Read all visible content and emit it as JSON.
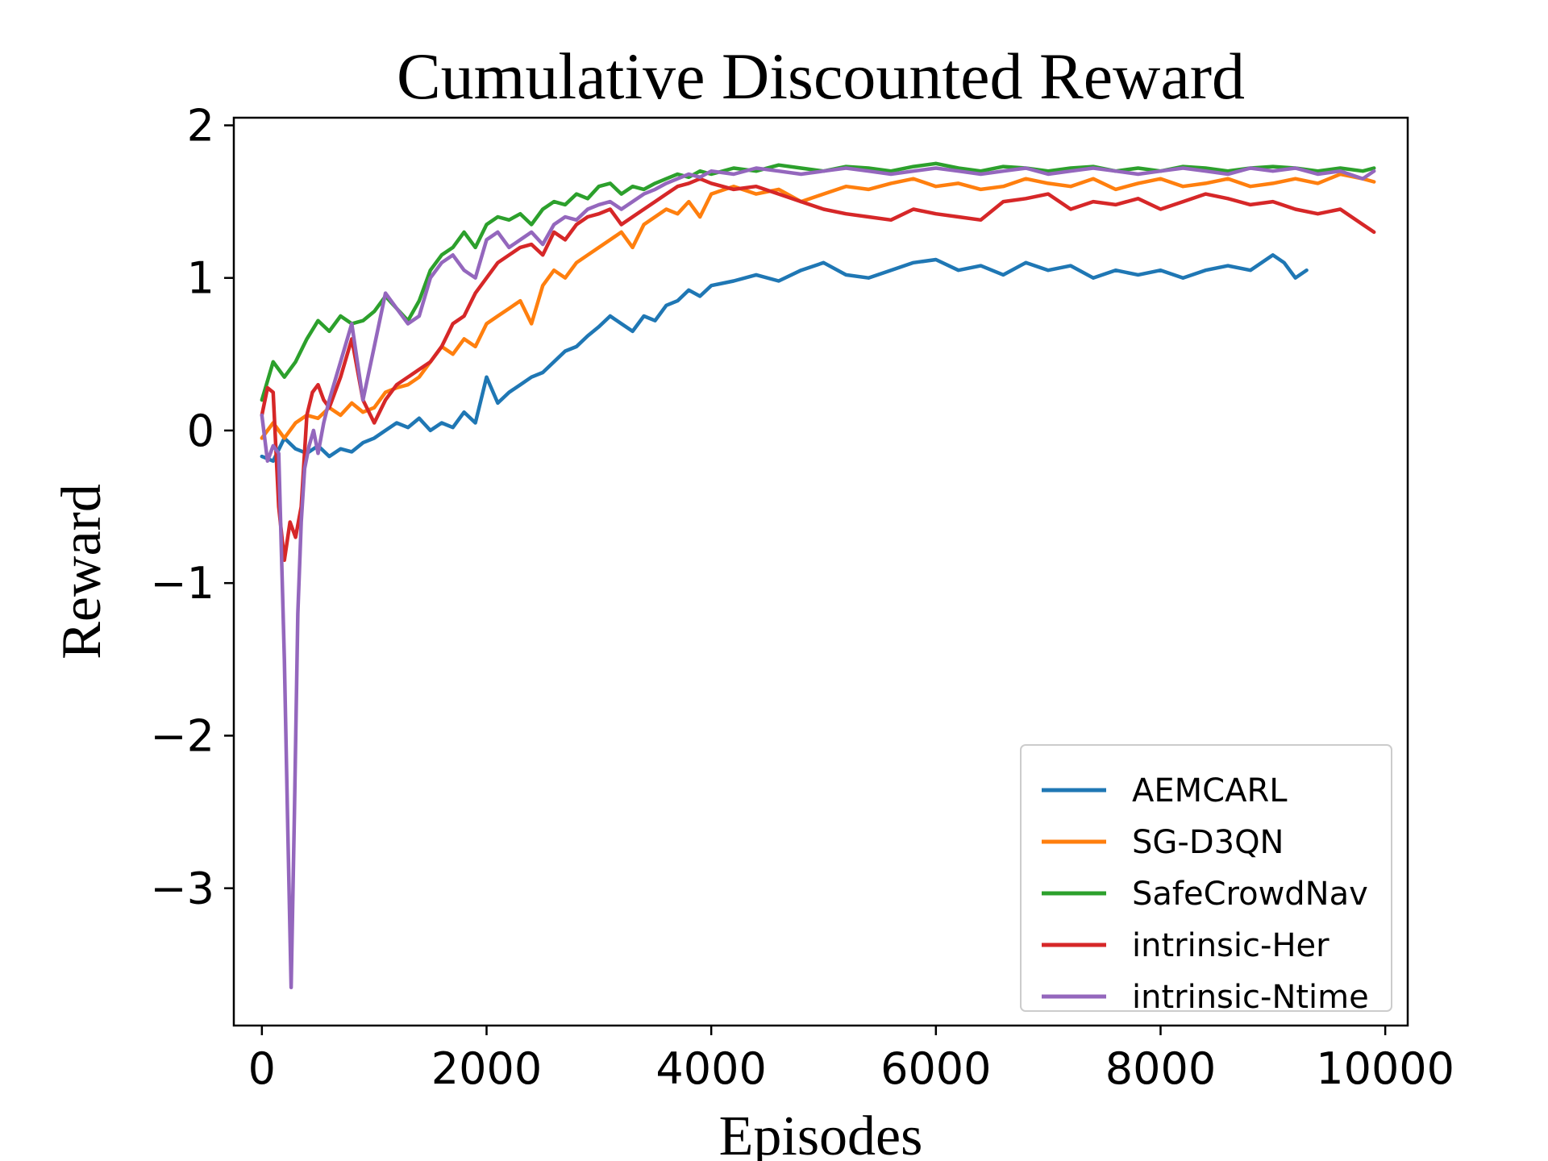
{
  "chart_data": {
    "type": "line",
    "title": "Cumulative Discounted Reward",
    "xlabel": "Episodes",
    "ylabel": "Reward",
    "xlim": [
      -250,
      10200
    ],
    "ylim": [
      -3.9,
      2.05
    ],
    "xticks": [
      0,
      2000,
      4000,
      6000,
      8000,
      10000
    ],
    "xtick_labels": [
      "0",
      "2000",
      "4000",
      "6000",
      "8000",
      "10000"
    ],
    "yticks": [
      -3,
      -2,
      -1,
      0,
      1,
      2
    ],
    "ytick_labels": [
      "−3",
      "−2",
      "−1",
      "0",
      "1",
      "2"
    ],
    "grid": false,
    "legend_position": "lower-right",
    "series": [
      {
        "name": "AEMCARL",
        "color": "#1f77b4",
        "x": [
          0,
          100,
          200,
          300,
          400,
          500,
          600,
          700,
          800,
          900,
          1000,
          1100,
          1200,
          1300,
          1400,
          1500,
          1600,
          1700,
          1800,
          1900,
          2000,
          2100,
          2200,
          2300,
          2400,
          2500,
          2600,
          2700,
          2800,
          2900,
          3000,
          3100,
          3200,
          3300,
          3400,
          3500,
          3600,
          3700,
          3800,
          3900,
          4000,
          4200,
          4400,
          4600,
          4800,
          5000,
          5200,
          5400,
          5600,
          5800,
          6000,
          6200,
          6400,
          6600,
          6800,
          7000,
          7200,
          7400,
          7600,
          7800,
          8000,
          8200,
          8400,
          8600,
          8800,
          9000,
          9100,
          9200,
          9300
        ],
        "values": [
          -0.17,
          -0.2,
          -0.05,
          -0.12,
          -0.15,
          -0.1,
          -0.17,
          -0.12,
          -0.14,
          -0.08,
          -0.05,
          0.0,
          0.05,
          0.02,
          0.08,
          0.0,
          0.05,
          0.02,
          0.12,
          0.05,
          0.35,
          0.18,
          0.25,
          0.3,
          0.35,
          0.38,
          0.45,
          0.52,
          0.55,
          0.62,
          0.68,
          0.75,
          0.7,
          0.65,
          0.75,
          0.72,
          0.82,
          0.85,
          0.92,
          0.88,
          0.95,
          0.98,
          1.02,
          0.98,
          1.05,
          1.1,
          1.02,
          1.0,
          1.05,
          1.1,
          1.12,
          1.05,
          1.08,
          1.02,
          1.1,
          1.05,
          1.08,
          1.0,
          1.05,
          1.02,
          1.05,
          1.0,
          1.05,
          1.08,
          1.05,
          1.15,
          1.1,
          1.0,
          1.05
        ]
      },
      {
        "name": "SG-D3QN",
        "color": "#ff7f0e",
        "x": [
          0,
          100,
          200,
          300,
          400,
          500,
          600,
          700,
          800,
          900,
          1000,
          1100,
          1200,
          1300,
          1400,
          1500,
          1600,
          1700,
          1800,
          1900,
          2000,
          2100,
          2200,
          2300,
          2400,
          2500,
          2600,
          2700,
          2800,
          2900,
          3000,
          3100,
          3200,
          3300,
          3400,
          3500,
          3600,
          3700,
          3800,
          3900,
          4000,
          4200,
          4400,
          4600,
          4800,
          5000,
          5200,
          5400,
          5600,
          5800,
          6000,
          6200,
          6400,
          6600,
          6800,
          7000,
          7200,
          7400,
          7600,
          7800,
          8000,
          8200,
          8400,
          8600,
          8800,
          9000,
          9200,
          9400,
          9600,
          9800,
          9900
        ],
        "values": [
          -0.05,
          0.05,
          -0.05,
          0.05,
          0.1,
          0.08,
          0.15,
          0.1,
          0.18,
          0.12,
          0.15,
          0.25,
          0.28,
          0.3,
          0.35,
          0.45,
          0.55,
          0.5,
          0.6,
          0.55,
          0.7,
          0.75,
          0.8,
          0.85,
          0.7,
          0.95,
          1.05,
          1.0,
          1.1,
          1.15,
          1.2,
          1.25,
          1.3,
          1.2,
          1.35,
          1.4,
          1.45,
          1.42,
          1.5,
          1.4,
          1.55,
          1.6,
          1.55,
          1.58,
          1.5,
          1.55,
          1.6,
          1.58,
          1.62,
          1.65,
          1.6,
          1.62,
          1.58,
          1.6,
          1.65,
          1.62,
          1.6,
          1.65,
          1.58,
          1.62,
          1.65,
          1.6,
          1.62,
          1.65,
          1.6,
          1.62,
          1.65,
          1.62,
          1.68,
          1.65,
          1.63
        ]
      },
      {
        "name": "SafeCrowdNav",
        "color": "#2ca02c",
        "x": [
          0,
          100,
          200,
          300,
          400,
          500,
          600,
          700,
          800,
          900,
          1000,
          1100,
          1200,
          1300,
          1400,
          1500,
          1600,
          1700,
          1800,
          1900,
          2000,
          2100,
          2200,
          2300,
          2400,
          2500,
          2600,
          2700,
          2800,
          2900,
          3000,
          3100,
          3200,
          3300,
          3400,
          3500,
          3600,
          3700,
          3800,
          3900,
          4000,
          4200,
          4400,
          4600,
          4800,
          5000,
          5200,
          5400,
          5600,
          5800,
          6000,
          6200,
          6400,
          6600,
          6800,
          7000,
          7200,
          7400,
          7600,
          7800,
          8000,
          8200,
          8400,
          8600,
          8800,
          9000,
          9200,
          9400,
          9600,
          9800,
          9900
        ],
        "values": [
          0.2,
          0.45,
          0.35,
          0.45,
          0.6,
          0.72,
          0.65,
          0.75,
          0.7,
          0.72,
          0.78,
          0.88,
          0.8,
          0.72,
          0.85,
          1.05,
          1.15,
          1.2,
          1.3,
          1.2,
          1.35,
          1.4,
          1.38,
          1.42,
          1.35,
          1.45,
          1.5,
          1.48,
          1.55,
          1.52,
          1.6,
          1.62,
          1.55,
          1.6,
          1.58,
          1.62,
          1.65,
          1.68,
          1.66,
          1.7,
          1.68,
          1.72,
          1.7,
          1.74,
          1.72,
          1.7,
          1.73,
          1.72,
          1.7,
          1.73,
          1.75,
          1.72,
          1.7,
          1.73,
          1.72,
          1.7,
          1.72,
          1.73,
          1.7,
          1.72,
          1.7,
          1.73,
          1.72,
          1.7,
          1.72,
          1.73,
          1.72,
          1.7,
          1.72,
          1.7,
          1.72
        ]
      },
      {
        "name": "intrinsic-Her",
        "color": "#d62728",
        "x": [
          0,
          50,
          100,
          150,
          200,
          250,
          300,
          350,
          400,
          450,
          500,
          550,
          600,
          700,
          800,
          900,
          1000,
          1100,
          1200,
          1300,
          1400,
          1500,
          1600,
          1700,
          1800,
          1900,
          2000,
          2100,
          2200,
          2300,
          2400,
          2500,
          2600,
          2700,
          2800,
          2900,
          3000,
          3100,
          3200,
          3300,
          3400,
          3500,
          3600,
          3700,
          3800,
          3900,
          4000,
          4200,
          4400,
          4600,
          4800,
          5000,
          5200,
          5400,
          5600,
          5800,
          6000,
          6200,
          6400,
          6600,
          6800,
          7000,
          7200,
          7400,
          7600,
          7800,
          8000,
          8200,
          8400,
          8600,
          8800,
          9000,
          9200,
          9400,
          9600,
          9800,
          9900
        ],
        "values": [
          0.1,
          0.28,
          0.25,
          -0.5,
          -0.85,
          -0.6,
          -0.7,
          -0.5,
          0.1,
          0.25,
          0.3,
          0.2,
          0.15,
          0.35,
          0.6,
          0.2,
          0.05,
          0.2,
          0.3,
          0.35,
          0.4,
          0.45,
          0.55,
          0.7,
          0.75,
          0.9,
          1.0,
          1.1,
          1.15,
          1.2,
          1.22,
          1.15,
          1.3,
          1.25,
          1.35,
          1.4,
          1.42,
          1.45,
          1.35,
          1.4,
          1.45,
          1.5,
          1.55,
          1.6,
          1.62,
          1.65,
          1.62,
          1.58,
          1.6,
          1.55,
          1.5,
          1.45,
          1.42,
          1.4,
          1.38,
          1.45,
          1.42,
          1.4,
          1.38,
          1.5,
          1.52,
          1.55,
          1.45,
          1.5,
          1.48,
          1.52,
          1.45,
          1.5,
          1.55,
          1.52,
          1.48,
          1.5,
          1.45,
          1.42,
          1.45,
          1.35,
          1.3
        ]
      },
      {
        "name": "intrinsic-Ntime",
        "color": "#9467bd",
        "x": [
          0,
          50,
          100,
          150,
          200,
          230,
          260,
          290,
          320,
          350,
          380,
          420,
          460,
          500,
          550,
          600,
          700,
          800,
          900,
          1000,
          1100,
          1200,
          1300,
          1400,
          1500,
          1600,
          1700,
          1800,
          1900,
          2000,
          2100,
          2200,
          2300,
          2400,
          2500,
          2600,
          2700,
          2800,
          2900,
          3000,
          3100,
          3200,
          3300,
          3400,
          3500,
          3600,
          3700,
          3800,
          3900,
          4000,
          4200,
          4400,
          4600,
          4800,
          5000,
          5200,
          5400,
          5600,
          5800,
          6000,
          6200,
          6400,
          6600,
          6800,
          7000,
          7200,
          7400,
          7600,
          7800,
          8000,
          8200,
          8400,
          8600,
          8800,
          9000,
          9200,
          9400,
          9600,
          9800,
          9900
        ],
        "values": [
          0.1,
          -0.2,
          -0.1,
          -0.15,
          -1.5,
          -2.6,
          -3.65,
          -2.5,
          -1.2,
          -0.6,
          -0.25,
          -0.1,
          0.0,
          -0.15,
          0.05,
          0.2,
          0.45,
          0.7,
          0.2,
          0.55,
          0.9,
          0.8,
          0.7,
          0.75,
          1.0,
          1.1,
          1.15,
          1.05,
          1.0,
          1.25,
          1.3,
          1.2,
          1.25,
          1.3,
          1.22,
          1.35,
          1.4,
          1.38,
          1.45,
          1.48,
          1.5,
          1.45,
          1.5,
          1.55,
          1.58,
          1.62,
          1.65,
          1.68,
          1.66,
          1.7,
          1.68,
          1.72,
          1.7,
          1.68,
          1.7,
          1.72,
          1.7,
          1.68,
          1.7,
          1.72,
          1.7,
          1.68,
          1.7,
          1.72,
          1.68,
          1.7,
          1.72,
          1.7,
          1.68,
          1.7,
          1.72,
          1.7,
          1.68,
          1.72,
          1.7,
          1.72,
          1.68,
          1.7,
          1.65,
          1.7
        ]
      }
    ]
  }
}
